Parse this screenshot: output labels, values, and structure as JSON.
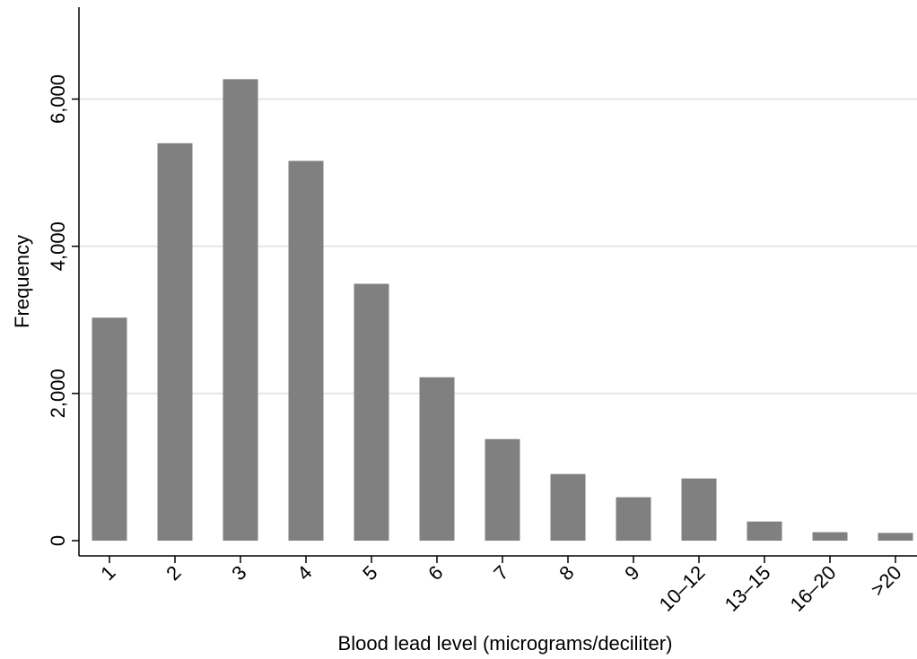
{
  "chart_data": {
    "type": "bar",
    "title": "",
    "xlabel": "Blood lead level (micrograms/deciliter)",
    "ylabel": "Frequency",
    "categories": [
      "1",
      "2",
      "3",
      "4",
      "5",
      "6",
      "7",
      "8",
      "9",
      "10–12",
      "13–15",
      "16–20",
      ">20"
    ],
    "values": [
      3030,
      5400,
      6270,
      5160,
      3490,
      2220,
      1380,
      905,
      590,
      845,
      260,
      115,
      105
    ],
    "ylim": [
      0,
      7200
    ],
    "yticks": [
      0,
      2000,
      4000,
      6000
    ],
    "ytick_labels": [
      "0",
      "2,000",
      "4,000",
      "6,000"
    ],
    "grid": true,
    "colors": {
      "bar": "#808080",
      "grid": "#e6e6e6",
      "axis": "#000000"
    }
  }
}
